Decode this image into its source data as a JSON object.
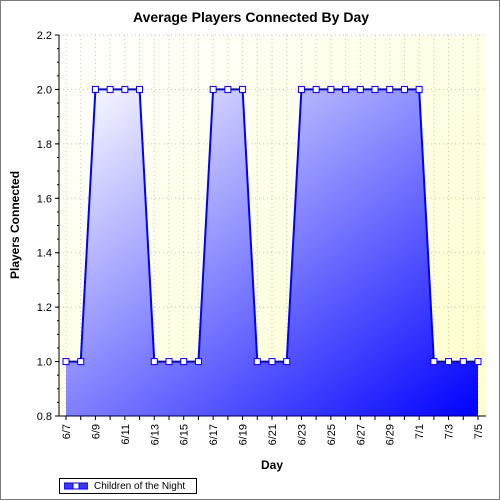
{
  "chart_data": {
    "type": "area",
    "title": "Average Players Connected By Day",
    "xlabel": "Day",
    "ylabel": "Players Connected",
    "ylim": [
      0.8,
      2.2
    ],
    "yticks": [
      "0.8",
      "1.0",
      "1.2",
      "1.4",
      "1.6",
      "1.8",
      "2.0",
      "2.2"
    ],
    "categories": [
      "6/7",
      "6/8",
      "6/9",
      "6/10",
      "6/11",
      "6/12",
      "6/13",
      "6/14",
      "6/15",
      "6/16",
      "6/17",
      "6/18",
      "6/19",
      "6/20",
      "6/21",
      "6/22",
      "6/23",
      "6/24",
      "6/25",
      "6/26",
      "6/27",
      "6/28",
      "6/29",
      "6/30",
      "7/1",
      "7/2",
      "7/3",
      "7/4",
      "7/5"
    ],
    "xtick_labels": [
      "6/7",
      "6/9",
      "6/11",
      "6/13",
      "6/15",
      "6/17",
      "6/19",
      "6/21",
      "6/23",
      "6/25",
      "6/27",
      "6/29",
      "7/1",
      "7/3",
      "7/5"
    ],
    "series": [
      {
        "name": "Children of the Night",
        "values": [
          1,
          1,
          2,
          2,
          2,
          2,
          1,
          1,
          1,
          1,
          2,
          2,
          2,
          1,
          1,
          1,
          2,
          2,
          2,
          2,
          2,
          2,
          2,
          2,
          2,
          1,
          1,
          1,
          1
        ]
      }
    ],
    "grid": true,
    "legend": "bottom-left",
    "colors": {
      "plot_bg": "#ffffe6",
      "line": "#0000ff",
      "fill_light": "#ffffff",
      "fill_dark": "#0000ff",
      "grid": "#c8c8b4"
    }
  }
}
